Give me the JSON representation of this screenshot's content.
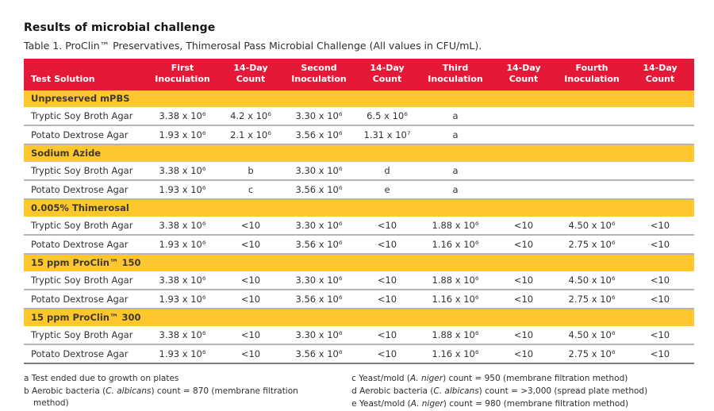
{
  "page": {
    "heading": "Results of microbial challenge",
    "caption": "Table 1. ProClin™ Preservatives, Thimerosal Pass Microbial Challenge (All values in CFU/mL)."
  },
  "colors": {
    "header_bg": "#e51937",
    "section_bg": "#ffc72e",
    "header_text": "#ffffff",
    "body_text": "#333333"
  },
  "table": {
    "columns": [
      "Test Solution",
      "First\nInoculation",
      "14-Day\nCount",
      "Second\nInoculation",
      "14-Day\nCount",
      "Third\nInoculation",
      "14-Day\nCount",
      "Fourth\nInoculation",
      "14-Day\nCount"
    ],
    "sections": [
      {
        "label": "Unpreserved mPBS",
        "rows": [
          [
            "Tryptic Soy Broth Agar",
            "3.38 x 10⁶",
            "4.2 x 10⁶",
            "3.30 x 10⁶",
            "6.5 x 10⁶",
            "a",
            "",
            "",
            ""
          ],
          [
            "Potato Dextrose Agar",
            "1.93 x 10⁶",
            "2.1 x 10⁶",
            "3.56 x 10⁶",
            "1.31 x 10⁷",
            "a",
            "",
            "",
            ""
          ]
        ]
      },
      {
        "label": "Sodium Azide",
        "rows": [
          [
            "Tryptic Soy Broth Agar",
            "3.38 x 10⁶",
            "b",
            "3.30 x 10⁶",
            "d",
            "a",
            "",
            "",
            ""
          ],
          [
            "Potato Dextrose Agar",
            "1.93 x 10⁶",
            "c",
            "3.56 x 10⁶",
            "e",
            "a",
            "",
            "",
            ""
          ]
        ]
      },
      {
        "label": "0.005% Thimerosal",
        "rows": [
          [
            "Tryptic Soy Broth Agar",
            "3.38 x 10⁶",
            "<10",
            "3.30 x 10⁶",
            "<10",
            "1.88 x 10⁶",
            "<10",
            "4.50 x 10⁶",
            "<10"
          ],
          [
            "Potato Dextrose Agar",
            "1.93 x 10⁶",
            "<10",
            "3.56 x 10⁶",
            "<10",
            "1.16 x 10⁶",
            "<10",
            "2.75 x 10⁶",
            "<10"
          ]
        ]
      },
      {
        "label": "15 ppm ProClin™ 150",
        "rows": [
          [
            "Tryptic Soy Broth Agar",
            "3.38 x 10⁶",
            "<10",
            "3.30 x 10⁶",
            "<10",
            "1.88 x 10⁶",
            "<10",
            "4.50 x 10⁶",
            "<10"
          ],
          [
            "Potato Dextrose Agar",
            "1.93 x 10⁶",
            "<10",
            "3.56 x 10⁶",
            "<10",
            "1.16 x 10⁶",
            "<10",
            "2.75 x 10⁶",
            "<10"
          ]
        ]
      },
      {
        "label": "15 ppm ProClin™ 300",
        "rows": [
          [
            "Tryptic Soy Broth Agar",
            "3.38 x 10⁶",
            "<10",
            "3.30 x 10⁶",
            "<10",
            "1.88 x 10⁶",
            "<10",
            "4.50 x 10⁶",
            "<10"
          ],
          [
            "Potato Dextrose Agar",
            "1.93 x 10⁶",
            "<10",
            "3.56 x 10⁶",
            "<10",
            "1.16 x 10⁶",
            "<10",
            "2.75 x 10⁶",
            "<10"
          ]
        ]
      }
    ]
  },
  "footnotes": {
    "left": [
      {
        "pre": "a Test ended due to growth on plates",
        "italic": "",
        "post": ""
      },
      {
        "pre": "b Aerobic bacteria (",
        "italic": "C. albicans",
        "post": ") count = 870 (membrane filtration method)"
      }
    ],
    "right": [
      {
        "pre": "c Yeast/mold (",
        "italic": "A. niger",
        "post": ") count = 950 (membrane filtration method)"
      },
      {
        "pre": "d Aerobic bacteria (",
        "italic": "C. albicans",
        "post": ") count = >3,000 (spread plate method)"
      },
      {
        "pre": "e Yeast/mold (",
        "italic": "A. niger",
        "post": ") count = 980 (membrane filtration method)"
      }
    ]
  }
}
